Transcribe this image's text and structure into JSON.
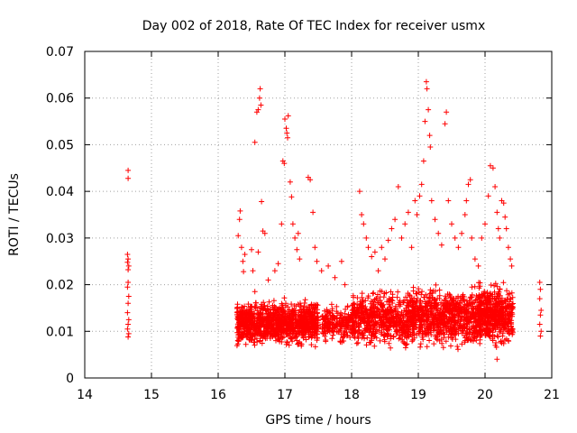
{
  "chart_data": {
    "type": "scatter",
    "title": "Day 002 of 2018, Rate Of TEC Index for receiver usmx",
    "xlabel": "GPS time / hours",
    "ylabel": "ROTI / TECUs",
    "xlim": [
      14,
      21
    ],
    "ylim": [
      0,
      0.07
    ],
    "xticks": [
      "14",
      "15",
      "16",
      "17",
      "18",
      "19",
      "20",
      "21"
    ],
    "yticks": [
      "0",
      "0.01",
      "0.02",
      "0.03",
      "0.04",
      "0.05",
      "0.06",
      "0.07"
    ],
    "xtick_values": [
      14,
      15,
      16,
      17,
      18,
      19,
      20,
      21
    ],
    "ytick_values": [
      0,
      0.01,
      0.02,
      0.03,
      0.04,
      0.05,
      0.06,
      0.07
    ],
    "grid": true,
    "marker": "+",
    "color": "#ff0000",
    "series": [
      {
        "name": "ROTI",
        "points": [
          [
            14.65,
            0.0445
          ],
          [
            14.65,
            0.0428
          ],
          [
            14.64,
            0.0265
          ],
          [
            14.65,
            0.0255
          ],
          [
            14.64,
            0.0248
          ],
          [
            14.66,
            0.024
          ],
          [
            14.65,
            0.0232
          ],
          [
            14.65,
            0.0205
          ],
          [
            14.64,
            0.0195
          ],
          [
            14.66,
            0.0175
          ],
          [
            14.65,
            0.016
          ],
          [
            14.64,
            0.014
          ],
          [
            14.66,
            0.0125
          ],
          [
            14.65,
            0.0115
          ],
          [
            14.64,
            0.0105
          ],
          [
            14.66,
            0.0095
          ],
          [
            14.65,
            0.0088
          ],
          [
            16.55,
            0.0505
          ],
          [
            16.58,
            0.057
          ],
          [
            16.6,
            0.0575
          ],
          [
            16.62,
            0.06
          ],
          [
            16.63,
            0.062
          ],
          [
            16.64,
            0.0585
          ],
          [
            16.65,
            0.0378
          ],
          [
            16.67,
            0.0315
          ],
          [
            16.7,
            0.031
          ],
          [
            16.97,
            0.0465
          ],
          [
            16.99,
            0.046
          ],
          [
            17.0,
            0.0555
          ],
          [
            17.02,
            0.0535
          ],
          [
            17.03,
            0.0525
          ],
          [
            17.04,
            0.0515
          ],
          [
            17.05,
            0.0562
          ],
          [
            17.08,
            0.042
          ],
          [
            17.1,
            0.0388
          ],
          [
            17.12,
            0.033
          ],
          [
            16.3,
            0.0305
          ],
          [
            16.32,
            0.034
          ],
          [
            16.33,
            0.0358
          ],
          [
            16.35,
            0.028
          ],
          [
            16.37,
            0.025
          ],
          [
            16.38,
            0.0228
          ],
          [
            16.4,
            0.0265
          ],
          [
            16.5,
            0.0275
          ],
          [
            16.52,
            0.023
          ],
          [
            16.55,
            0.0185
          ],
          [
            16.6,
            0.027
          ],
          [
            16.75,
            0.021
          ],
          [
            16.85,
            0.023
          ],
          [
            16.9,
            0.0245
          ],
          [
            16.95,
            0.033
          ],
          [
            17.15,
            0.03
          ],
          [
            17.18,
            0.0275
          ],
          [
            17.2,
            0.031
          ],
          [
            17.22,
            0.0255
          ],
          [
            17.35,
            0.043
          ],
          [
            17.38,
            0.0425
          ],
          [
            17.42,
            0.0355
          ],
          [
            17.45,
            0.028
          ],
          [
            17.48,
            0.025
          ],
          [
            17.55,
            0.023
          ],
          [
            17.65,
            0.024
          ],
          [
            17.75,
            0.0215
          ],
          [
            17.85,
            0.025
          ],
          [
            17.9,
            0.02
          ],
          [
            18.12,
            0.04
          ],
          [
            18.15,
            0.035
          ],
          [
            18.18,
            0.033
          ],
          [
            18.22,
            0.03
          ],
          [
            18.25,
            0.028
          ],
          [
            18.3,
            0.026
          ],
          [
            18.35,
            0.027
          ],
          [
            18.4,
            0.023
          ],
          [
            18.45,
            0.028
          ],
          [
            18.5,
            0.0255
          ],
          [
            18.55,
            0.0295
          ],
          [
            18.6,
            0.032
          ],
          [
            18.65,
            0.034
          ],
          [
            18.7,
            0.041
          ],
          [
            18.75,
            0.03
          ],
          [
            18.8,
            0.033
          ],
          [
            18.85,
            0.0355
          ],
          [
            18.9,
            0.028
          ],
          [
            18.95,
            0.038
          ],
          [
            18.98,
            0.035
          ],
          [
            19.02,
            0.039
          ],
          [
            19.05,
            0.0415
          ],
          [
            19.08,
            0.0465
          ],
          [
            19.1,
            0.055
          ],
          [
            19.12,
            0.0635
          ],
          [
            19.13,
            0.062
          ],
          [
            19.15,
            0.0575
          ],
          [
            19.17,
            0.052
          ],
          [
            19.18,
            0.0495
          ],
          [
            19.2,
            0.038
          ],
          [
            19.25,
            0.034
          ],
          [
            19.3,
            0.031
          ],
          [
            19.35,
            0.0285
          ],
          [
            19.4,
            0.0545
          ],
          [
            19.42,
            0.057
          ],
          [
            19.45,
            0.038
          ],
          [
            19.5,
            0.033
          ],
          [
            19.55,
            0.03
          ],
          [
            19.6,
            0.028
          ],
          [
            19.65,
            0.031
          ],
          [
            19.7,
            0.035
          ],
          [
            19.72,
            0.038
          ],
          [
            19.75,
            0.0415
          ],
          [
            19.78,
            0.0425
          ],
          [
            19.8,
            0.03
          ],
          [
            19.85,
            0.0255
          ],
          [
            19.9,
            0.024
          ],
          [
            19.95,
            0.03
          ],
          [
            20.0,
            0.033
          ],
          [
            20.05,
            0.039
          ],
          [
            20.08,
            0.0455
          ],
          [
            20.12,
            0.045
          ],
          [
            20.15,
            0.041
          ],
          [
            20.18,
            0.0355
          ],
          [
            20.2,
            0.032
          ],
          [
            20.22,
            0.03
          ],
          [
            20.25,
            0.038
          ],
          [
            20.28,
            0.0375
          ],
          [
            20.3,
            0.0345
          ],
          [
            20.32,
            0.032
          ],
          [
            20.35,
            0.028
          ],
          [
            20.38,
            0.0255
          ],
          [
            20.4,
            0.024
          ],
          [
            20.18,
            0.004
          ],
          [
            20.82,
            0.0205
          ],
          [
            20.83,
            0.019
          ],
          [
            20.82,
            0.017
          ],
          [
            20.84,
            0.0145
          ],
          [
            20.83,
            0.0135
          ],
          [
            20.82,
            0.0115
          ],
          [
            20.84,
            0.01
          ],
          [
            20.83,
            0.009
          ]
        ],
        "bands": [
          {
            "x0": 16.28,
            "x1": 17.5,
            "y0": 0.006,
            "y1": 0.0175,
            "n": 1100
          },
          {
            "x0": 17.55,
            "x1": 18.0,
            "y0": 0.006,
            "y1": 0.017,
            "n": 200
          },
          {
            "x0": 18.0,
            "x1": 18.95,
            "y0": 0.0055,
            "y1": 0.02,
            "n": 650
          },
          {
            "x0": 18.9,
            "x1": 19.95,
            "y0": 0.005,
            "y1": 0.021,
            "n": 800
          },
          {
            "x0": 19.9,
            "x1": 20.42,
            "y0": 0.0055,
            "y1": 0.0215,
            "n": 500
          }
        ]
      }
    ]
  }
}
